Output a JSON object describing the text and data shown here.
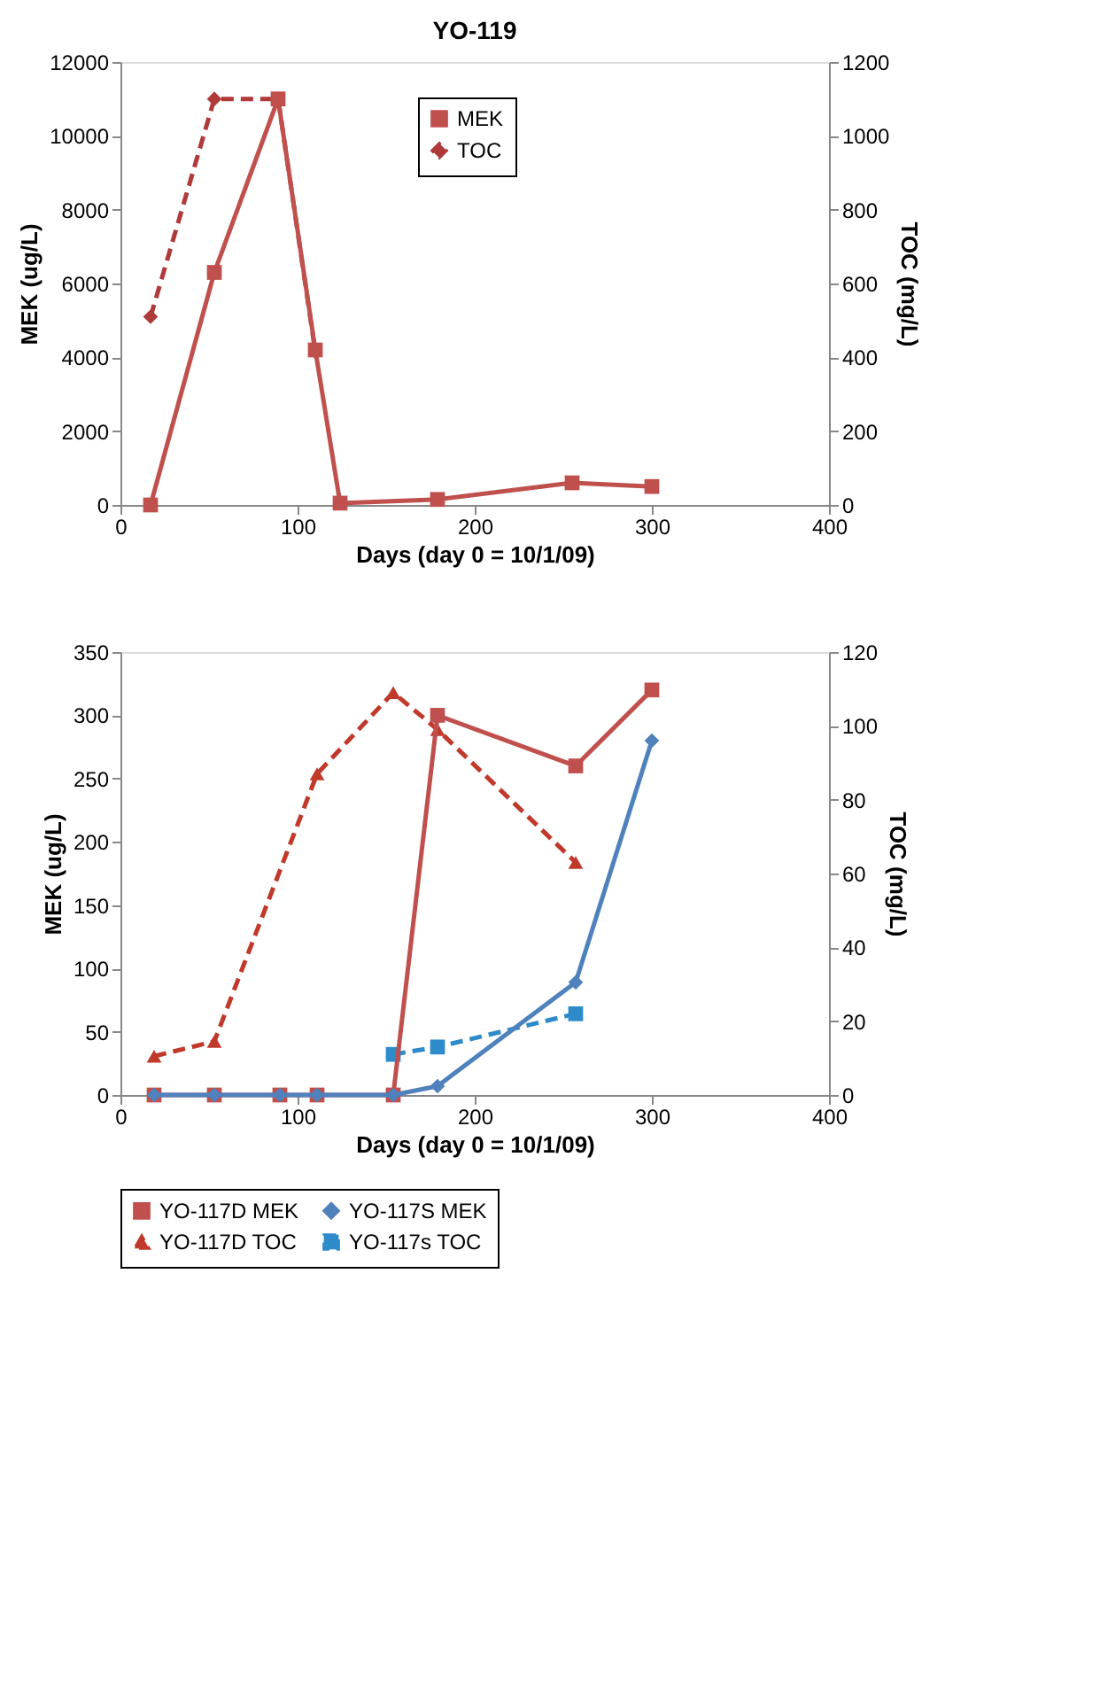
{
  "chart_data": [
    {
      "type": "line",
      "title": "YO-119",
      "xlabel": "Days (day 0 = 10/1/09)",
      "ylabel": "MEK (ug/L)",
      "y2label": "TOC (mg/L)",
      "xlim": [
        0,
        400
      ],
      "xticks": [
        0,
        100,
        200,
        300,
        400
      ],
      "ylim": [
        0,
        12000
      ],
      "yticks": [
        0,
        2000,
        4000,
        6000,
        8000,
        10000,
        12000
      ],
      "y2lim": [
        0,
        1200
      ],
      "y2ticks": [
        0,
        200,
        400,
        600,
        800,
        1000,
        1200
      ],
      "grid": false,
      "legend": "top",
      "series": [
        {
          "name": "MEK",
          "color": "#c0504d",
          "marker": "square",
          "line_style": "solid",
          "x": [
            17,
            53,
            89,
            110,
            124,
            179,
            255,
            300
          ],
          "values": [
            0,
            6300,
            11000,
            4200,
            50,
            150,
            600,
            500
          ]
        },
        {
          "name": "TOC",
          "color": "#b03a3a",
          "marker": "diamond",
          "line_style": "dashed",
          "axis": "y2",
          "x": [
            17,
            53,
            89,
            110
          ],
          "values": [
            510,
            1100,
            1100,
            415
          ]
        }
      ]
    },
    {
      "type": "line",
      "xlabel": "Days (day 0 = 10/1/09)",
      "ylabel": "MEK (ug/L)",
      "y2label": "TOC (mg/L)",
      "xlim": [
        0,
        400
      ],
      "xticks": [
        0,
        100,
        200,
        300,
        400
      ],
      "ylim": [
        0,
        350
      ],
      "yticks": [
        0,
        50,
        100,
        150,
        200,
        250,
        300,
        350
      ],
      "y2lim": [
        0,
        120
      ],
      "y2ticks": [
        0,
        20,
        40,
        60,
        80,
        100,
        120
      ],
      "grid": false,
      "legend": "bottom",
      "series": [
        {
          "name": "YO-117D MEK",
          "color": "#c0504d",
          "marker": "square",
          "line_style": "solid",
          "x": [
            19,
            53,
            90,
            111,
            154,
            179,
            257,
            300
          ],
          "values": [
            0,
            0,
            0,
            0,
            0,
            300,
            260,
            320
          ]
        },
        {
          "name": "YO-117S MEK",
          "color": "#4f81bd",
          "marker": "diamond",
          "line_style": "solid",
          "x": [
            19,
            53,
            90,
            111,
            154,
            179,
            257,
            300
          ],
          "values": [
            0,
            0,
            0,
            0,
            0,
            7,
            89,
            280
          ]
        },
        {
          "name": "YO-117D TOC",
          "color": "#c0392b",
          "marker": "triangle",
          "line_style": "dashed",
          "axis": "y2",
          "x": [
            19,
            53,
            111,
            154,
            179,
            257
          ],
          "values": [
            10.5,
            14.5,
            87,
            109,
            99,
            63
          ]
        },
        {
          "name": "YO-117s TOC",
          "color": "#2e8bc9",
          "marker": "square",
          "line_style": "dashed",
          "axis": "y2",
          "x": [
            154,
            179,
            257
          ],
          "values": [
            11,
            13,
            22
          ]
        }
      ]
    }
  ]
}
